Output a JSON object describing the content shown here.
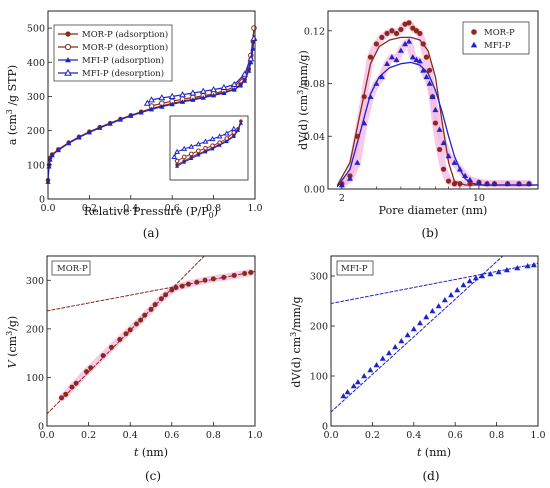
{
  "figure": {
    "colors": {
      "mor": "#8b2a1a",
      "mfi": "#1f24c8",
      "glow": "#f4b8e4"
    }
  },
  "chart_data": [
    {
      "id": "a",
      "panel_label": "(a)",
      "type": "line",
      "xlabel_main": "Relative Pressure (P/P",
      "xlabel_sub": "0",
      "xlabel_end": ")",
      "ylabel_main": "a (cm",
      "ylabel_sup": "3",
      "ylabel_end": " /g STP)",
      "xlim": [
        0,
        1.0
      ],
      "ylim": [
        0,
        550
      ],
      "xticks": [
        "0.0",
        "0.2",
        "0.4",
        "0.6",
        "0.8",
        "1.0"
      ],
      "yticks": [
        "0",
        "100",
        "200",
        "300",
        "400",
        "500"
      ],
      "legend_position": "top-left",
      "series": [
        {
          "name": "MOR-P (adsorption)",
          "marker": "filled-circle",
          "color": "#8b2a1a",
          "x": [
            0.0,
            0.005,
            0.01,
            0.02,
            0.05,
            0.1,
            0.15,
            0.2,
            0.25,
            0.3,
            0.35,
            0.4,
            0.45,
            0.5,
            0.55,
            0.6,
            0.65,
            0.7,
            0.75,
            0.8,
            0.85,
            0.9,
            0.93,
            0.95,
            0.97,
            0.98,
            0.99,
            0.995
          ],
          "y": [
            55,
            100,
            120,
            130,
            145,
            165,
            182,
            197,
            210,
            222,
            234,
            245,
            255,
            265,
            272,
            280,
            286,
            292,
            298,
            305,
            312,
            322,
            335,
            350,
            380,
            410,
            460,
            500
          ]
        },
        {
          "name": "MOR-P (desorption)",
          "marker": "open-circle",
          "color": "#8b2a1a",
          "x": [
            0.995,
            0.98,
            0.95,
            0.9,
            0.85,
            0.8,
            0.75,
            0.7,
            0.65,
            0.6,
            0.55,
            0.5
          ],
          "y": [
            500,
            420,
            360,
            328,
            316,
            308,
            302,
            297,
            292,
            286,
            280,
            272
          ]
        },
        {
          "name": "MFI-P (adsorption)",
          "marker": "filled-triangle",
          "color": "#1f24c8",
          "x": [
            0.0,
            0.005,
            0.01,
            0.02,
            0.05,
            0.1,
            0.15,
            0.2,
            0.25,
            0.3,
            0.35,
            0.4,
            0.45,
            0.5,
            0.55,
            0.6,
            0.65,
            0.7,
            0.75,
            0.8,
            0.85,
            0.9,
            0.93,
            0.95,
            0.97,
            0.98,
            0.99,
            0.995
          ],
          "y": [
            50,
            95,
            115,
            128,
            143,
            163,
            180,
            195,
            208,
            220,
            232,
            243,
            253,
            262,
            270,
            277,
            284,
            290,
            296,
            303,
            310,
            320,
            332,
            346,
            375,
            400,
            440,
            470
          ]
        },
        {
          "name": "MFI-P (desorption)",
          "marker": "open-triangle",
          "color": "#1f24c8",
          "x": [
            0.995,
            0.98,
            0.95,
            0.9,
            0.85,
            0.8,
            0.75,
            0.7,
            0.65,
            0.6,
            0.55,
            0.5,
            0.48
          ],
          "y": [
            470,
            410,
            365,
            335,
            326,
            320,
            315,
            310,
            305,
            300,
            296,
            290,
            280
          ]
        }
      ]
    },
    {
      "id": "b",
      "panel_label": "(b)",
      "type": "scatter",
      "xlabel": "Pore diameter (nm)",
      "ylabel_main": "dV(d) (cm",
      "ylabel_sup": "3",
      "ylabel_end": "/mm/g)",
      "xscale": "log",
      "xlim": [
        1.7,
        20
      ],
      "ylim": [
        0,
        0.135
      ],
      "xticks": [
        "2",
        "10"
      ],
      "xtick_values": [
        2,
        10
      ],
      "yticks": [
        "0.00",
        "0.04",
        "0.08",
        "0.12"
      ],
      "ytick_values": [
        0.0,
        0.04,
        0.08,
        0.12
      ],
      "legend_position": "top-right",
      "series": [
        {
          "name": "MOR-P",
          "marker": "filled-circle",
          "color": "#8b2a1a",
          "x": [
            2.0,
            2.2,
            2.4,
            2.6,
            2.8,
            3.0,
            3.2,
            3.4,
            3.6,
            3.8,
            4.0,
            4.2,
            4.4,
            4.6,
            4.8,
            5.0,
            5.2,
            5.4,
            5.6,
            5.8,
            6.0,
            6.3,
            6.6,
            7.0,
            7.5,
            8.0,
            9.0,
            10.0,
            11.0,
            12.0,
            14.0,
            16.0,
            18.0
          ],
          "y": [
            0.004,
            0.01,
            0.04,
            0.07,
            0.1,
            0.11,
            0.115,
            0.118,
            0.12,
            0.118,
            0.121,
            0.125,
            0.126,
            0.122,
            0.12,
            0.118,
            0.11,
            0.1,
            0.09,
            0.07,
            0.05,
            0.03,
            0.015,
            0.006,
            0.004,
            0.004,
            0.004,
            0.005,
            0.004,
            0.004,
            0.004,
            0.004,
            0.004
          ]
        },
        {
          "name": "MFI-P",
          "marker": "filled-triangle",
          "color": "#1f24c8",
          "x": [
            2.0,
            2.2,
            2.4,
            2.6,
            2.8,
            3.0,
            3.2,
            3.4,
            3.6,
            3.8,
            4.0,
            4.2,
            4.4,
            4.6,
            4.8,
            5.0,
            5.2,
            5.4,
            5.6,
            5.8,
            6.0,
            6.3,
            6.6,
            7.0,
            7.5,
            8.0,
            8.5,
            9.0,
            10.0,
            11.0,
            12.0,
            14.0,
            16.0,
            18.0
          ],
          "y": [
            0.003,
            0.008,
            0.02,
            0.05,
            0.07,
            0.08,
            0.085,
            0.095,
            0.1,
            0.098,
            0.105,
            0.11,
            0.112,
            0.1,
            0.098,
            0.097,
            0.09,
            0.085,
            0.08,
            0.07,
            0.06,
            0.045,
            0.035,
            0.025,
            0.02,
            0.015,
            0.01,
            0.007,
            0.005,
            0.004,
            0.004,
            0.004,
            0.004,
            0.004
          ]
        }
      ],
      "fit_curves": [
        {
          "color": "#8b2a1a",
          "x": [
            1.9,
            2.2,
            2.5,
            2.8,
            3.1,
            3.5,
            4.0,
            4.5,
            5.0,
            5.5,
            6.0,
            6.5,
            7.0,
            7.5,
            8.5,
            10.0,
            14.0,
            20.0
          ],
          "y": [
            0.003,
            0.02,
            0.06,
            0.095,
            0.108,
            0.113,
            0.115,
            0.115,
            0.113,
            0.105,
            0.085,
            0.05,
            0.02,
            0.006,
            0.003,
            0.003,
            0.003,
            0.003
          ]
        },
        {
          "color": "#1f24c8",
          "x": [
            1.9,
            2.2,
            2.5,
            2.8,
            3.1,
            3.5,
            4.0,
            4.5,
            5.0,
            5.5,
            6.0,
            6.5,
            7.0,
            7.5,
            8.0,
            8.5,
            9.0,
            10.0,
            14.0,
            20.0
          ],
          "y": [
            0.002,
            0.015,
            0.045,
            0.072,
            0.085,
            0.092,
            0.095,
            0.096,
            0.094,
            0.088,
            0.075,
            0.058,
            0.04,
            0.025,
            0.015,
            0.008,
            0.005,
            0.003,
            0.003,
            0.003
          ]
        }
      ]
    },
    {
      "id": "c",
      "panel_label": "(c)",
      "tag": "MOR-P",
      "type": "scatter",
      "xlabel_italic": "t",
      "xlabel_end": " (nm)",
      "ylabel_italic": "V",
      "ylabel_main": " (cm",
      "ylabel_sup": "3",
      "ylabel_end": "/g)",
      "xlim": [
        0,
        1.0
      ],
      "ylim": [
        0,
        350
      ],
      "xticks": [
        "0.0",
        "0.2",
        "0.4",
        "0.6",
        "0.8",
        "1.0"
      ],
      "yticks": [
        "0",
        "100",
        "200",
        "300"
      ],
      "series": [
        {
          "name": "MOR-P",
          "marker": "filled-circle",
          "color": "#8b2a1a",
          "x": [
            0.07,
            0.09,
            0.12,
            0.14,
            0.19,
            0.21,
            0.27,
            0.31,
            0.35,
            0.38,
            0.4,
            0.43,
            0.45,
            0.47,
            0.5,
            0.52,
            0.55,
            0.57,
            0.6,
            0.62,
            0.65,
            0.68,
            0.72,
            0.76,
            0.8,
            0.85,
            0.9,
            0.95,
            0.98
          ],
          "y": [
            58,
            65,
            80,
            88,
            112,
            120,
            145,
            162,
            178,
            190,
            198,
            210,
            218,
            228,
            240,
            250,
            262,
            270,
            280,
            285,
            288,
            292,
            296,
            300,
            303,
            306,
            310,
            314,
            316
          ]
        }
      ],
      "fit_lines": [
        {
          "color": "#8b2a1a",
          "x": [
            0.0,
            0.78
          ],
          "y": [
            25,
            360
          ]
        },
        {
          "color": "#8b2a1a",
          "x": [
            0.0,
            1.0
          ],
          "y": [
            237,
            318
          ]
        }
      ]
    },
    {
      "id": "d",
      "panel_label": "(d)",
      "tag": "MFI-P",
      "type": "scatter",
      "xlabel_italic": "t",
      "xlabel_end": " (nm)",
      "ylabel_main": "dV(d) cm",
      "ylabel_sup": "3",
      "ylabel_end": "/mm/g",
      "xlim": [
        0,
        1.0
      ],
      "ylim": [
        0,
        340
      ],
      "xticks": [
        "0.0",
        "0.2",
        "0.4",
        "0.6",
        "0.8",
        "1.0"
      ],
      "yticks": [
        "0",
        "100",
        "200",
        "300"
      ],
      "series": [
        {
          "name": "MFI-P",
          "marker": "filled-triangle",
          "color": "#1f24c8",
          "x": [
            0.06,
            0.08,
            0.11,
            0.13,
            0.16,
            0.19,
            0.22,
            0.25,
            0.28,
            0.31,
            0.34,
            0.37,
            0.4,
            0.43,
            0.46,
            0.49,
            0.52,
            0.55,
            0.58,
            0.61,
            0.64,
            0.67,
            0.7,
            0.73,
            0.77,
            0.81,
            0.85,
            0.9,
            0.95,
            0.98
          ],
          "y": [
            60,
            68,
            80,
            88,
            100,
            112,
            122,
            135,
            146,
            158,
            170,
            182,
            194,
            206,
            218,
            230,
            240,
            252,
            262,
            272,
            282,
            290,
            296,
            300,
            304,
            308,
            312,
            316,
            320,
            322
          ]
        }
      ],
      "fit_lines": [
        {
          "color": "#1f24c8",
          "x": [
            0.0,
            0.87
          ],
          "y": [
            28,
            355
          ]
        },
        {
          "color": "#1f24c8",
          "x": [
            0.0,
            1.0
          ],
          "y": [
            245,
            325
          ]
        }
      ]
    }
  ]
}
